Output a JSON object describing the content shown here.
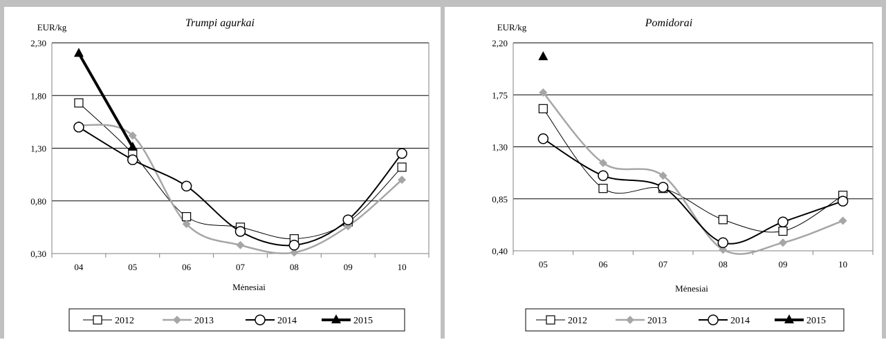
{
  "chart_data": [
    {
      "type": "line",
      "title": "Trumpi agurkai",
      "unit_label": "EUR/kg",
      "xlabel": "Mėnesiai",
      "categories": [
        "04",
        "05",
        "06",
        "07",
        "08",
        "09",
        "10"
      ],
      "y_ticks": [
        "0,30",
        "0,80",
        "1,30",
        "1,80",
        "2,30"
      ],
      "ylim": [
        0.3,
        2.3
      ],
      "grid": "horizontal",
      "legend_position": "bottom",
      "series": [
        {
          "name": "2012",
          "values": [
            1.73,
            1.25,
            0.65,
            0.55,
            0.44,
            0.6,
            1.12
          ],
          "color": "#000000",
          "marker": "square-open",
          "line_width": 1
        },
        {
          "name": "2013",
          "values": [
            1.52,
            1.42,
            0.58,
            0.38,
            0.31,
            0.56,
            1.0
          ],
          "color": "#a6a6a6",
          "marker": "diamond",
          "line_width": 2.5
        },
        {
          "name": "2014",
          "values": [
            1.5,
            1.19,
            0.94,
            0.51,
            0.38,
            0.62,
            1.25
          ],
          "color": "#000000",
          "marker": "circle-open",
          "line_width": 2
        },
        {
          "name": "2015",
          "values": [
            2.2,
            1.31,
            null,
            null,
            null,
            null,
            null
          ],
          "color": "#000000",
          "marker": "triangle",
          "line_width": 4
        }
      ]
    },
    {
      "type": "line",
      "title": "Pomidorai",
      "unit_label": "EUR/kg",
      "xlabel": "Mėnesiai",
      "categories": [
        "05",
        "06",
        "07",
        "08",
        "09",
        "10"
      ],
      "y_ticks": [
        "0,40",
        "0,85",
        "1,30",
        "1,75",
        "2,20"
      ],
      "ylim": [
        0.4,
        2.2
      ],
      "grid": "horizontal",
      "legend_position": "bottom",
      "series": [
        {
          "name": "2012",
          "values": [
            1.63,
            0.94,
            0.94,
            0.67,
            0.57,
            0.88
          ],
          "color": "#000000",
          "marker": "square-open",
          "line_width": 1
        },
        {
          "name": "2013",
          "values": [
            1.77,
            1.16,
            1.05,
            0.41,
            0.47,
            0.66
          ],
          "color": "#a6a6a6",
          "marker": "diamond",
          "line_width": 2.5
        },
        {
          "name": "2014",
          "values": [
            1.37,
            1.05,
            0.95,
            0.47,
            0.65,
            0.83
          ],
          "color": "#000000",
          "marker": "circle-open",
          "line_width": 2
        },
        {
          "name": "2015",
          "values": [
            2.08,
            null,
            null,
            null,
            null,
            null
          ],
          "color": "#000000",
          "marker": "triangle",
          "line_width": 4
        }
      ]
    }
  ],
  "colors": {
    "background": "#ffffff",
    "frame": "#c0c0c0",
    "axis": "#808080",
    "gridline": "#000000"
  }
}
